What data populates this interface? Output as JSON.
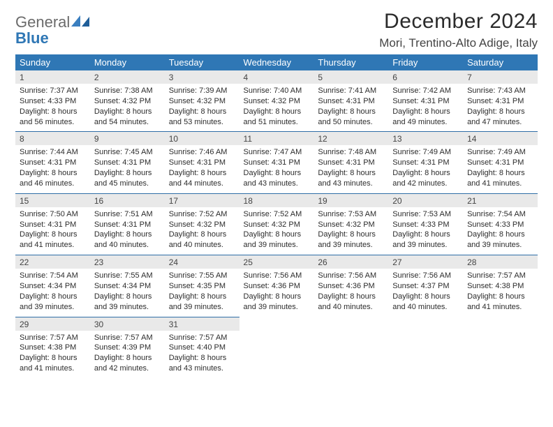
{
  "brand": {
    "line1": "General",
    "line2": "Blue",
    "mark_color": "#2f77b5",
    "text_color": "#6b6b6b"
  },
  "header": {
    "title": "December 2024",
    "location": "Mori, Trentino-Alto Adige, Italy"
  },
  "colors": {
    "header_bg": "#2f77b5",
    "date_bg": "#e9e9e9",
    "rule": "#2f6ea7"
  },
  "weekdays": [
    "Sunday",
    "Monday",
    "Tuesday",
    "Wednesday",
    "Thursday",
    "Friday",
    "Saturday"
  ],
  "weeks": [
    [
      {
        "date": "1",
        "sunrise": "Sunrise: 7:37 AM",
        "sunset": "Sunset: 4:33 PM",
        "daylight": "Daylight: 8 hours and 56 minutes."
      },
      {
        "date": "2",
        "sunrise": "Sunrise: 7:38 AM",
        "sunset": "Sunset: 4:32 PM",
        "daylight": "Daylight: 8 hours and 54 minutes."
      },
      {
        "date": "3",
        "sunrise": "Sunrise: 7:39 AM",
        "sunset": "Sunset: 4:32 PM",
        "daylight": "Daylight: 8 hours and 53 minutes."
      },
      {
        "date": "4",
        "sunrise": "Sunrise: 7:40 AM",
        "sunset": "Sunset: 4:32 PM",
        "daylight": "Daylight: 8 hours and 51 minutes."
      },
      {
        "date": "5",
        "sunrise": "Sunrise: 7:41 AM",
        "sunset": "Sunset: 4:31 PM",
        "daylight": "Daylight: 8 hours and 50 minutes."
      },
      {
        "date": "6",
        "sunrise": "Sunrise: 7:42 AM",
        "sunset": "Sunset: 4:31 PM",
        "daylight": "Daylight: 8 hours and 49 minutes."
      },
      {
        "date": "7",
        "sunrise": "Sunrise: 7:43 AM",
        "sunset": "Sunset: 4:31 PM",
        "daylight": "Daylight: 8 hours and 47 minutes."
      }
    ],
    [
      {
        "date": "8",
        "sunrise": "Sunrise: 7:44 AM",
        "sunset": "Sunset: 4:31 PM",
        "daylight": "Daylight: 8 hours and 46 minutes."
      },
      {
        "date": "9",
        "sunrise": "Sunrise: 7:45 AM",
        "sunset": "Sunset: 4:31 PM",
        "daylight": "Daylight: 8 hours and 45 minutes."
      },
      {
        "date": "10",
        "sunrise": "Sunrise: 7:46 AM",
        "sunset": "Sunset: 4:31 PM",
        "daylight": "Daylight: 8 hours and 44 minutes."
      },
      {
        "date": "11",
        "sunrise": "Sunrise: 7:47 AM",
        "sunset": "Sunset: 4:31 PM",
        "daylight": "Daylight: 8 hours and 43 minutes."
      },
      {
        "date": "12",
        "sunrise": "Sunrise: 7:48 AM",
        "sunset": "Sunset: 4:31 PM",
        "daylight": "Daylight: 8 hours and 43 minutes."
      },
      {
        "date": "13",
        "sunrise": "Sunrise: 7:49 AM",
        "sunset": "Sunset: 4:31 PM",
        "daylight": "Daylight: 8 hours and 42 minutes."
      },
      {
        "date": "14",
        "sunrise": "Sunrise: 7:49 AM",
        "sunset": "Sunset: 4:31 PM",
        "daylight": "Daylight: 8 hours and 41 minutes."
      }
    ],
    [
      {
        "date": "15",
        "sunrise": "Sunrise: 7:50 AM",
        "sunset": "Sunset: 4:31 PM",
        "daylight": "Daylight: 8 hours and 41 minutes."
      },
      {
        "date": "16",
        "sunrise": "Sunrise: 7:51 AM",
        "sunset": "Sunset: 4:31 PM",
        "daylight": "Daylight: 8 hours and 40 minutes."
      },
      {
        "date": "17",
        "sunrise": "Sunrise: 7:52 AM",
        "sunset": "Sunset: 4:32 PM",
        "daylight": "Daylight: 8 hours and 40 minutes."
      },
      {
        "date": "18",
        "sunrise": "Sunrise: 7:52 AM",
        "sunset": "Sunset: 4:32 PM",
        "daylight": "Daylight: 8 hours and 39 minutes."
      },
      {
        "date": "19",
        "sunrise": "Sunrise: 7:53 AM",
        "sunset": "Sunset: 4:32 PM",
        "daylight": "Daylight: 8 hours and 39 minutes."
      },
      {
        "date": "20",
        "sunrise": "Sunrise: 7:53 AM",
        "sunset": "Sunset: 4:33 PM",
        "daylight": "Daylight: 8 hours and 39 minutes."
      },
      {
        "date": "21",
        "sunrise": "Sunrise: 7:54 AM",
        "sunset": "Sunset: 4:33 PM",
        "daylight": "Daylight: 8 hours and 39 minutes."
      }
    ],
    [
      {
        "date": "22",
        "sunrise": "Sunrise: 7:54 AM",
        "sunset": "Sunset: 4:34 PM",
        "daylight": "Daylight: 8 hours and 39 minutes."
      },
      {
        "date": "23",
        "sunrise": "Sunrise: 7:55 AM",
        "sunset": "Sunset: 4:34 PM",
        "daylight": "Daylight: 8 hours and 39 minutes."
      },
      {
        "date": "24",
        "sunrise": "Sunrise: 7:55 AM",
        "sunset": "Sunset: 4:35 PM",
        "daylight": "Daylight: 8 hours and 39 minutes."
      },
      {
        "date": "25",
        "sunrise": "Sunrise: 7:56 AM",
        "sunset": "Sunset: 4:36 PM",
        "daylight": "Daylight: 8 hours and 39 minutes."
      },
      {
        "date": "26",
        "sunrise": "Sunrise: 7:56 AM",
        "sunset": "Sunset: 4:36 PM",
        "daylight": "Daylight: 8 hours and 40 minutes."
      },
      {
        "date": "27",
        "sunrise": "Sunrise: 7:56 AM",
        "sunset": "Sunset: 4:37 PM",
        "daylight": "Daylight: 8 hours and 40 minutes."
      },
      {
        "date": "28",
        "sunrise": "Sunrise: 7:57 AM",
        "sunset": "Sunset: 4:38 PM",
        "daylight": "Daylight: 8 hours and 41 minutes."
      }
    ],
    [
      {
        "date": "29",
        "sunrise": "Sunrise: 7:57 AM",
        "sunset": "Sunset: 4:38 PM",
        "daylight": "Daylight: 8 hours and 41 minutes."
      },
      {
        "date": "30",
        "sunrise": "Sunrise: 7:57 AM",
        "sunset": "Sunset: 4:39 PM",
        "daylight": "Daylight: 8 hours and 42 minutes."
      },
      {
        "date": "31",
        "sunrise": "Sunrise: 7:57 AM",
        "sunset": "Sunset: 4:40 PM",
        "daylight": "Daylight: 8 hours and 43 minutes."
      },
      null,
      null,
      null,
      null
    ]
  ]
}
